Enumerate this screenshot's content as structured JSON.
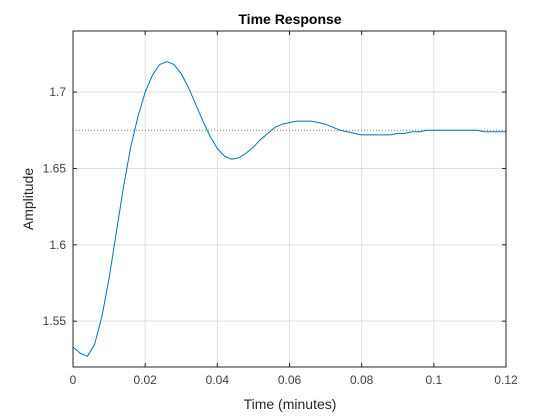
{
  "chart_data": {
    "type": "line",
    "title": "Time Response",
    "xlabel": "Time (minutes)",
    "ylabel": "Amplitude",
    "xlim": [
      0,
      0.12
    ],
    "ylim": [
      1.52,
      1.74
    ],
    "grid": true,
    "xticks": [
      0,
      0.02,
      0.04,
      0.06,
      0.08,
      0.1,
      0.12
    ],
    "xtick_labels": [
      "0",
      "0.02",
      "0.04",
      "0.06",
      "0.08",
      "0.1",
      "0.12"
    ],
    "yticks": [
      1.55,
      1.6,
      1.65,
      1.7
    ],
    "ytick_labels": [
      "1.55",
      "1.6",
      "1.65",
      "1.7"
    ],
    "steady_state": 1.675,
    "colors": {
      "series": "#0072bd",
      "steady_state": "#7f7f7f",
      "grid": "#dfdfdf",
      "axes": "#262626"
    },
    "series": [
      {
        "x": [
          0,
          0.002,
          0.004,
          0.006,
          0.008,
          0.01,
          0.012,
          0.014,
          0.016,
          0.018,
          0.02,
          0.022,
          0.024,
          0.026,
          0.028,
          0.03,
          0.032,
          0.034,
          0.036,
          0.038,
          0.04,
          0.042,
          0.044,
          0.046,
          0.048,
          0.05,
          0.052,
          0.054,
          0.056,
          0.058,
          0.06,
          0.062,
          0.064,
          0.066,
          0.068,
          0.07,
          0.072,
          0.074,
          0.076,
          0.078,
          0.08,
          0.082,
          0.084,
          0.086,
          0.088,
          0.09,
          0.092,
          0.094,
          0.096,
          0.098,
          0.1,
          0.102,
          0.104,
          0.106,
          0.108,
          0.11,
          0.112,
          0.114,
          0.116,
          0.118,
          0.12
        ],
        "y": [
          1.533,
          1.529,
          1.527,
          1.535,
          1.553,
          1.578,
          1.608,
          1.638,
          1.664,
          1.684,
          1.7,
          1.711,
          1.718,
          1.72,
          1.718,
          1.712,
          1.703,
          1.692,
          1.681,
          1.671,
          1.663,
          1.658,
          1.656,
          1.657,
          1.66,
          1.664,
          1.669,
          1.673,
          1.677,
          1.679,
          1.68,
          1.681,
          1.681,
          1.681,
          1.68,
          1.679,
          1.677,
          1.675,
          1.674,
          1.673,
          1.672,
          1.672,
          1.672,
          1.672,
          1.672,
          1.673,
          1.673,
          1.674,
          1.674,
          1.675,
          1.675,
          1.675,
          1.675,
          1.675,
          1.675,
          1.675,
          1.675,
          1.674,
          1.674,
          1.674,
          1.674
        ]
      }
    ]
  }
}
